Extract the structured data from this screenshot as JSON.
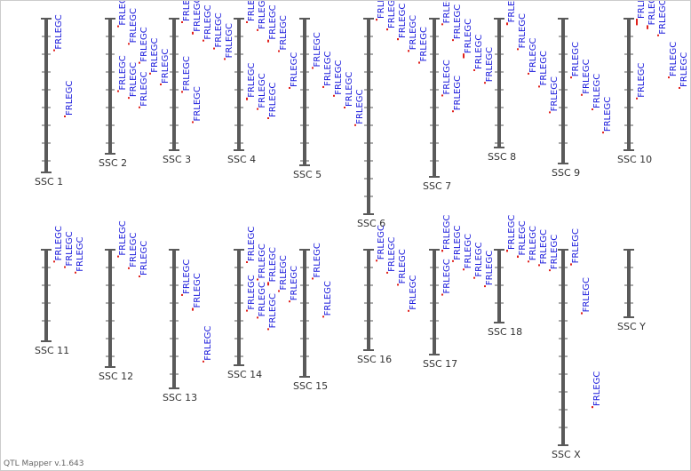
{
  "app": {
    "footer": "QTL Mapper v.1.643"
  },
  "qtl_label": "FRLEGC",
  "colors": {
    "chromosome": "#5a5a5a",
    "tick": "#5a5a5a",
    "label_text": "#1a1adb",
    "marker": "#e0201b",
    "chr_label": "#333333"
  },
  "chromosomes": [
    {
      "name": "SSC 1",
      "qtls": [
        {
          "pos": 0.2,
          "span": 0.01
        },
        {
          "pos": 0.63,
          "span": 0.01
        }
      ]
    },
    {
      "name": "SSC 2",
      "qtls": [
        {
          "pos": 0.05,
          "span": 0.01
        },
        {
          "pos": 0.18,
          "span": 0.01
        },
        {
          "pos": 0.32,
          "span": 0.01
        },
        {
          "pos": 0.4,
          "span": 0.01
        },
        {
          "pos": 0.48,
          "span": 0.01
        },
        {
          "pos": 0.53,
          "span": 0.01
        },
        {
          "pos": 0.58,
          "span": 0.01
        },
        {
          "pos": 0.65,
          "span": 0.01
        }
      ]
    },
    {
      "name": "SSC 3",
      "qtls": [
        {
          "pos": 0.02,
          "span": 0.01
        },
        {
          "pos": 0.1,
          "span": 0.02
        },
        {
          "pos": 0.16,
          "span": 0.01
        },
        {
          "pos": 0.22,
          "span": 0.01
        },
        {
          "pos": 0.3,
          "span": 0.01
        },
        {
          "pos": 0.55,
          "span": 0.01
        },
        {
          "pos": 0.78,
          "span": 0.01
        }
      ]
    },
    {
      "name": "SSC 4",
      "qtls": [
        {
          "pos": 0.02,
          "span": 0.01
        },
        {
          "pos": 0.08,
          "span": 0.01
        },
        {
          "pos": 0.16,
          "span": 0.02
        },
        {
          "pos": 0.24,
          "span": 0.01
        },
        {
          "pos": 0.52,
          "span": 0.01
        },
        {
          "pos": 0.6,
          "span": 0.02
        },
        {
          "pos": 0.68,
          "span": 0.01
        },
        {
          "pos": 0.75,
          "span": 0.01
        }
      ]
    },
    {
      "name": "SSC 5",
      "qtls": [
        {
          "pos": 0.33,
          "span": 0.01
        },
        {
          "pos": 0.46,
          "span": 0.01
        },
        {
          "pos": 0.52,
          "span": 0.01
        },
        {
          "pos": 0.6,
          "span": 0.01
        },
        {
          "pos": 0.72,
          "span": 0.01
        }
      ]
    },
    {
      "name": "SSC 6",
      "qtls": [
        {
          "pos": 0.0,
          "span": 0.01
        },
        {
          "pos": 0.05,
          "span": 0.01
        },
        {
          "pos": 0.1,
          "span": 0.01
        },
        {
          "pos": 0.16,
          "span": 0.01
        },
        {
          "pos": 0.22,
          "span": 0.01
        }
      ]
    },
    {
      "name": "SSC 7",
      "qtls": [
        {
          "pos": 0.03,
          "span": 0.01
        },
        {
          "pos": 0.13,
          "span": 0.01
        },
        {
          "pos": 0.22,
          "span": 0.03
        },
        {
          "pos": 0.32,
          "span": 0.01
        },
        {
          "pos": 0.4,
          "span": 0.01
        },
        {
          "pos": 0.48,
          "span": 0.01
        },
        {
          "pos": 0.58,
          "span": 0.01
        }
      ]
    },
    {
      "name": "SSC 8",
      "qtls": [
        {
          "pos": 0.03,
          "span": 0.02
        },
        {
          "pos": 0.23,
          "span": 0.01
        },
        {
          "pos": 0.42,
          "span": 0.01
        },
        {
          "pos": 0.52,
          "span": 0.01
        },
        {
          "pos": 0.72,
          "span": 0.01
        }
      ]
    },
    {
      "name": "SSC 9",
      "qtls": [
        {
          "pos": 0.4,
          "span": 0.01
        },
        {
          "pos": 0.52,
          "span": 0.01
        },
        {
          "pos": 0.62,
          "span": 0.01
        },
        {
          "pos": 0.78,
          "span": 0.01
        }
      ]
    },
    {
      "name": "SSC 10",
      "qtls": [
        {
          "pos": 0.0,
          "span": 0.05
        },
        {
          "pos": 0.05,
          "span": 0.03
        },
        {
          "pos": 0.12,
          "span": 0.01
        },
        {
          "pos": 0.44,
          "span": 0.01
        },
        {
          "pos": 0.52,
          "span": 0.01
        },
        {
          "pos": 0.6,
          "span": 0.01
        }
      ]
    },
    {
      "name": "SSC 11",
      "qtls": [
        {
          "pos": 0.12,
          "span": 0.01
        },
        {
          "pos": 0.18,
          "span": 0.01
        },
        {
          "pos": 0.24,
          "span": 0.01
        }
      ]
    },
    {
      "name": "SSC 12",
      "qtls": [
        {
          "pos": 0.05,
          "span": 0.01
        },
        {
          "pos": 0.15,
          "span": 0.01
        },
        {
          "pos": 0.22,
          "span": 0.01
        }
      ]
    },
    {
      "name": "SSC 13",
      "qtls": [
        {
          "pos": 0.32,
          "span": 0.01
        },
        {
          "pos": 0.42,
          "span": 0.02
        },
        {
          "pos": 0.8,
          "span": 0.01
        }
      ]
    },
    {
      "name": "SSC 14",
      "qtls": [
        {
          "pos": 0.1,
          "span": 0.01
        },
        {
          "pos": 0.25,
          "span": 0.01
        },
        {
          "pos": 0.28,
          "span": 0.03
        },
        {
          "pos": 0.35,
          "span": 0.01
        },
        {
          "pos": 0.44,
          "span": 0.01
        },
        {
          "pos": 0.52,
          "span": 0.01
        },
        {
          "pos": 0.58,
          "span": 0.01
        },
        {
          "pos": 0.68,
          "span": 0.01
        }
      ]
    },
    {
      "name": "SSC 15",
      "qtls": [
        {
          "pos": 0.22,
          "span": 0.01
        },
        {
          "pos": 0.52,
          "span": 0.01
        }
      ]
    },
    {
      "name": "SSC 16",
      "qtls": [
        {
          "pos": 0.1,
          "span": 0.01
        },
        {
          "pos": 0.22,
          "span": 0.01
        },
        {
          "pos": 0.34,
          "span": 0.01
        },
        {
          "pos": 0.6,
          "span": 0.01
        }
      ]
    },
    {
      "name": "SSC 17",
      "qtls": [
        {
          "pos": 0.0,
          "span": 0.02
        },
        {
          "pos": 0.1,
          "span": 0.01
        },
        {
          "pos": 0.18,
          "span": 0.01
        },
        {
          "pos": 0.26,
          "span": 0.01
        },
        {
          "pos": 0.34,
          "span": 0.01
        },
        {
          "pos": 0.42,
          "span": 0.01
        }
      ]
    },
    {
      "name": "SSC 18",
      "qtls": [
        {
          "pos": 0.0,
          "span": 0.03
        },
        {
          "pos": 0.08,
          "span": 0.03
        },
        {
          "pos": 0.15,
          "span": 0.01
        },
        {
          "pos": 0.2,
          "span": 0.01
        },
        {
          "pos": 0.27,
          "span": 0.01
        }
      ]
    },
    {
      "name": "SSC X",
      "qtls": [
        {
          "pos": 0.07,
          "span": 0.01
        },
        {
          "pos": 0.32,
          "span": 0.01
        },
        {
          "pos": 0.8,
          "span": 0.01
        }
      ]
    },
    {
      "name": "SSC Y",
      "qtls": []
    }
  ]
}
